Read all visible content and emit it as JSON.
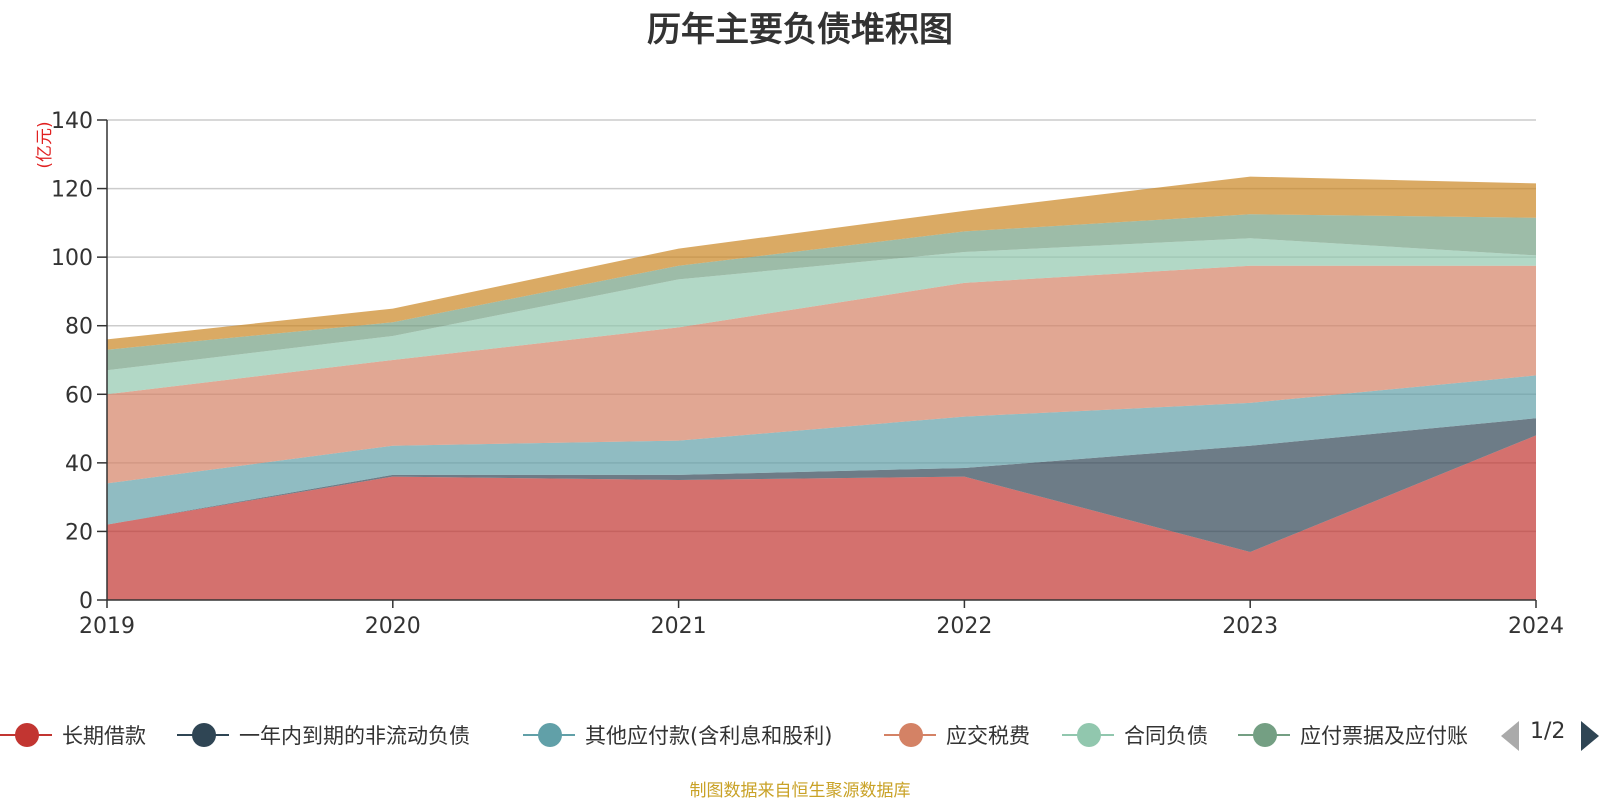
{
  "chart_data": {
    "type": "area",
    "stacked": true,
    "title": "历年主要负债堆积图",
    "ylabel": "(亿元)",
    "x": [
      "2019",
      "2020",
      "2021",
      "2022",
      "2023",
      "2024"
    ],
    "ylim": [
      0,
      140
    ],
    "yticks": [
      0,
      20,
      40,
      60,
      80,
      100,
      120,
      140
    ],
    "grid": true,
    "legend_position": "bottom",
    "series": [
      {
        "name": "长期借款",
        "color": "#c23531",
        "values": [
          22,
          36,
          35,
          36,
          14,
          48
        ]
      },
      {
        "name": "一年内到期的非流动负债",
        "color": "#2f4554",
        "values": [
          0,
          0.5,
          1.5,
          2.5,
          31,
          5
        ]
      },
      {
        "name": "其他应付款(含利息和股利)",
        "color": "#61a0a8",
        "values": [
          12,
          8.5,
          10,
          15,
          12.5,
          12.5
        ]
      },
      {
        "name": "应交税费",
        "color": "#d48265",
        "values": [
          26,
          25,
          33,
          39,
          40,
          32
        ]
      },
      {
        "name": "合同负债",
        "color": "#91c7ae",
        "values": [
          7,
          7,
          14,
          9,
          8,
          3
        ]
      },
      {
        "name": "应付票据及应付账款",
        "color": "#749f83",
        "values": [
          6,
          4,
          4,
          6,
          7,
          11
        ]
      },
      {
        "name": "",
        "color": "#ca8622",
        "values": [
          3,
          4,
          5,
          6,
          11,
          10
        ]
      }
    ]
  },
  "legend": {
    "items": [
      {
        "label": "长期借款",
        "color": "#c23531"
      },
      {
        "label": "一年内到期的非流动负债",
        "color": "#2f4554"
      },
      {
        "label": "其他应付款(含利息和股利)",
        "color": "#61a0a8"
      },
      {
        "label": "应交税费",
        "color": "#d48265"
      },
      {
        "label": "合同负债",
        "color": "#91c7ae"
      },
      {
        "label": "应付票据及应付账",
        "color": "#749f83"
      }
    ],
    "page": "1/2"
  },
  "footer": "制图数据来自恒生聚源数据库"
}
